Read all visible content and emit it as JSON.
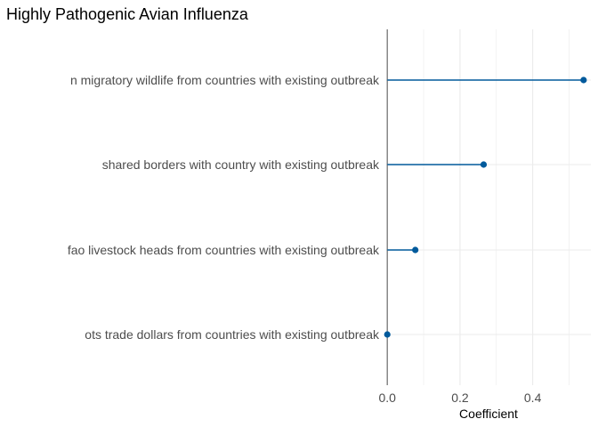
{
  "chart_data": {
    "type": "lollipop",
    "title": "Highly Pathogenic Avian Influenza",
    "xlabel": "Coefficient",
    "ylabel": "",
    "categories": [
      "n migratory wildlife from countries with existing outbreak",
      "shared borders with country with existing outbreak",
      "fao livestock heads from countries with existing outbreak",
      "ots trade dollars from countries with existing outbreak"
    ],
    "values": [
      0.54,
      0.265,
      0.077,
      0.0
    ],
    "xlim": [
      -0.003,
      0.56
    ],
    "xticks": [
      0.0,
      0.2,
      0.4
    ],
    "xtick_labels": [
      "0.0",
      "0.2",
      "0.4"
    ],
    "grid": true,
    "colors": {
      "series": "#005a9c",
      "zero_line": "#7f7f7f",
      "grid": "#ebebeb"
    }
  }
}
